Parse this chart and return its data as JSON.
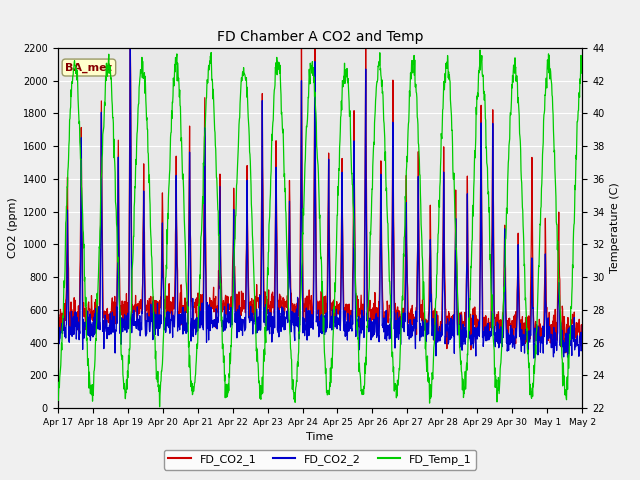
{
  "title": "FD Chamber A CO2 and Temp",
  "xlabel": "Time",
  "ylabel_left": "CO2 (ppm)",
  "ylabel_right": "Temperature (C)",
  "ylim_left": [
    0,
    2200
  ],
  "ylim_right": [
    22,
    44
  ],
  "yticks_left": [
    0,
    200,
    400,
    600,
    800,
    1000,
    1200,
    1400,
    1600,
    1800,
    2000,
    2200
  ],
  "yticks_right": [
    22,
    24,
    26,
    28,
    30,
    32,
    34,
    36,
    38,
    40,
    42,
    44
  ],
  "xtick_labels": [
    "Apr 17",
    "Apr 18",
    "Apr 19",
    "Apr 20",
    "Apr 21",
    "Apr 22",
    "Apr 23",
    "Apr 24",
    "Apr 25",
    "Apr 26",
    "Apr 27",
    "Apr 28",
    "Apr 29",
    "Apr 30",
    "May 1",
    "May 2"
  ],
  "color_co2_1": "#cc0000",
  "color_co2_2": "#0000cc",
  "color_temp": "#00cc00",
  "legend_labels": [
    "FD_CO2_1",
    "FD_CO2_2",
    "FD_Temp_1"
  ],
  "plot_bg_color": "#e8e8e8",
  "annotation_text": "BA_met",
  "annotation_color": "#880000",
  "annotation_bg": "#ffffcc",
  "grid_color": "#ffffff",
  "fig_bg": "#f0f0f0",
  "linewidth": 0.9
}
